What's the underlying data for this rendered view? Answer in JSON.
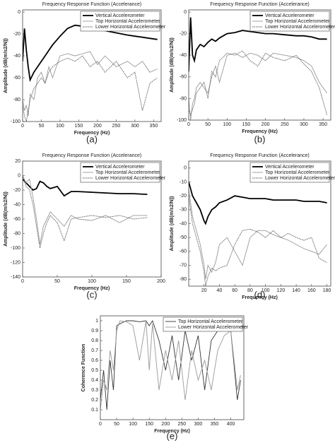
{
  "chart_data": [
    {
      "type": "line",
      "title": "Frequency Response Function (Accelerance)",
      "xlabel": "Frequency (Hz)",
      "ylabel": "Amplitude (dB(m/s2/N))",
      "caption": "(a)",
      "x": [
        0,
        5,
        10,
        15,
        20,
        30,
        40,
        50,
        60,
        70,
        80,
        100,
        120,
        140,
        160,
        180,
        200,
        220,
        250,
        280,
        300,
        320,
        340,
        360
      ],
      "series": [
        {
          "name": "Vertical Accelerometer",
          "color": "#000000",
          "style": "solid",
          "values": [
            -45,
            -15,
            -35,
            -50,
            -62,
            -55,
            -50,
            -45,
            -40,
            -35,
            -30,
            -22,
            -15,
            -12,
            -13,
            -14,
            -16,
            -17,
            -19,
            -21,
            -22,
            -23,
            -24,
            -25
          ]
        },
        {
          "name": "Top Horizontal Accelerometer",
          "color": "#999999",
          "style": "solid",
          "values": [
            -80,
            -90,
            -85,
            -95,
            -75,
            -80,
            -60,
            -55,
            -65,
            -50,
            -60,
            -40,
            -38,
            -40,
            -38,
            -36,
            -48,
            -40,
            -50,
            -45,
            -50,
            -45,
            -55,
            -52
          ]
        },
        {
          "name": "Lower Horizontal Accelerometer",
          "color": "#555555",
          "style": "dotted",
          "values": [
            -85,
            -95,
            -100,
            -90,
            -80,
            -70,
            -65,
            -60,
            -65,
            -55,
            -50,
            -45,
            -42,
            -45,
            -40,
            -50,
            -45,
            -55,
            -45,
            -60,
            -55,
            -90,
            -65,
            -60
          ]
        }
      ],
      "xlim": [
        0,
        370
      ],
      "xticks": [
        0,
        50,
        100,
        150,
        200,
        250,
        300,
        350
      ],
      "ylim": [
        -100,
        2
      ],
      "yticks": [
        -100,
        -80,
        -60,
        -40,
        -20,
        0
      ]
    },
    {
      "type": "line",
      "title": "Frequency Response Function (Accelerance)",
      "xlabel": "Frequency (Hz)",
      "ylabel": "Amplitude (dB(m/s2/N))",
      "caption": "(b)",
      "x": [
        0,
        5,
        10,
        15,
        20,
        30,
        40,
        50,
        60,
        70,
        80,
        100,
        120,
        140,
        160,
        180,
        200,
        220,
        250,
        280,
        300,
        320,
        340,
        360
      ],
      "series": [
        {
          "name": "Vertical Accelerometer",
          "color": "#000000",
          "style": "solid",
          "values": [
            -55,
            -5,
            -40,
            -45,
            -35,
            -30,
            -32,
            -28,
            -25,
            -27,
            -24,
            -20,
            -19,
            -17,
            -18,
            -19,
            -20,
            -20,
            -21,
            -22,
            -22,
            -23,
            -25,
            -25
          ]
        },
        {
          "name": "Top Horizontal Accelerometer",
          "color": "#999999",
          "style": "solid",
          "values": [
            -80,
            -100,
            -85,
            -80,
            -70,
            -65,
            -70,
            -75,
            -60,
            -50,
            -65,
            -40,
            -38,
            -42,
            -38,
            -40,
            -45,
            -38,
            -40,
            -42,
            -45,
            -50,
            -65,
            -75
          ]
        },
        {
          "name": "Lower Horizontal Accelerometer",
          "color": "#555555",
          "style": "dotted",
          "values": [
            -90,
            -95,
            -90,
            -85,
            -75,
            -70,
            -65,
            -80,
            -55,
            -60,
            -45,
            -38,
            -40,
            -36,
            -45,
            -50,
            -38,
            -42,
            -45,
            -40,
            -48,
            -55,
            -70,
            -95
          ]
        }
      ],
      "xlim": [
        0,
        370
      ],
      "xticks": [
        0,
        50,
        100,
        150,
        200,
        250,
        300,
        350
      ],
      "ylim": [
        -100,
        2
      ],
      "yticks": [
        -100,
        -80,
        -60,
        -40,
        -20,
        0
      ]
    },
    {
      "type": "line",
      "title": "Frequency Response Function (Accelerance)",
      "xlabel": "Frequency (Hz)",
      "ylabel": "Amplitude (dB(m/s2/N))",
      "caption": "(c)",
      "x": [
        0,
        5,
        10,
        15,
        20,
        25,
        30,
        35,
        40,
        50,
        60,
        70,
        80,
        100,
        120,
        140,
        160,
        180
      ],
      "series": [
        {
          "name": "Vertical Accelerometer",
          "color": "#000000",
          "style": "solid",
          "values": [
            -5,
            -10,
            -15,
            -20,
            -18,
            -8,
            -10,
            -15,
            -18,
            -15,
            -28,
            -22,
            -22,
            -23,
            -24,
            -25,
            -25,
            -26
          ]
        },
        {
          "name": "Top Horizontal Accelerometer",
          "color": "#999999",
          "style": "solid",
          "values": [
            0,
            -10,
            -5,
            -30,
            -60,
            -95,
            -70,
            -60,
            -50,
            -60,
            -70,
            -55,
            -60,
            -62,
            -55,
            -65,
            -55,
            -55
          ]
        },
        {
          "name": "Lower Horizontal Accelerometer",
          "color": "#555555",
          "style": "dotted",
          "values": [
            0,
            -15,
            -20,
            -40,
            -70,
            -100,
            -80,
            -65,
            -55,
            -65,
            -90,
            -60,
            -58,
            -55,
            -58,
            -55,
            -60,
            -58
          ]
        }
      ],
      "xlim": [
        0,
        200
      ],
      "xticks": [
        0,
        50,
        100,
        150,
        200
      ],
      "ylim": [
        -140,
        20
      ],
      "yticks": [
        -140,
        -120,
        -100,
        -80,
        -60,
        -40,
        -20,
        0,
        20
      ]
    },
    {
      "type": "line",
      "title": "Frequency Response Function (Accelerance)",
      "xlabel": "Frequency (Hz)",
      "ylabel": "Amplitude (dB(m/s2/N))",
      "caption": "(d)",
      "x": [
        0,
        5,
        10,
        15,
        20,
        22,
        25,
        30,
        35,
        40,
        50,
        60,
        70,
        80,
        90,
        100,
        110,
        120,
        130,
        140,
        150,
        160,
        170,
        180
      ],
      "series": [
        {
          "name": "Vertical Accelerometer",
          "color": "#000000",
          "style": "solid",
          "values": [
            -10,
            -20,
            -25,
            -30,
            -38,
            -40,
            -35,
            -30,
            -28,
            -25,
            -23,
            -20,
            -21,
            -22,
            -22,
            -22,
            -23,
            -23,
            -23,
            -23,
            -24,
            -24,
            -24,
            -25
          ]
        },
        {
          "name": "Top Horizontal Accelerometer",
          "color": "#999999",
          "style": "solid",
          "values": [
            -15,
            -35,
            -45,
            -55,
            -70,
            -80,
            -70,
            -75,
            -68,
            -55,
            -50,
            -60,
            -70,
            -50,
            -45,
            -45,
            -48,
            -50,
            -52,
            -55,
            -58,
            -60,
            -62,
            -55
          ]
        },
        {
          "name": "Lower Horizontal Accelerometer",
          "color": "#555555",
          "style": "dotted",
          "values": [
            -20,
            -40,
            -50,
            -60,
            -75,
            -85,
            -78,
            -72,
            -74,
            -72,
            -70,
            -55,
            -45,
            -44,
            -46,
            -50,
            -45,
            -50,
            -47,
            -50,
            -52,
            -50,
            -65,
            -68
          ]
        }
      ],
      "xlim": [
        0,
        185
      ],
      "xticks": [
        20,
        40,
        60,
        80,
        100,
        120,
        140,
        160,
        180
      ],
      "ylim": [
        -85,
        5
      ],
      "yticks": [
        -80,
        -70,
        -60,
        -50,
        -40,
        -30,
        -20,
        -10,
        0
      ]
    },
    {
      "type": "line",
      "xlabel": "Frequency (Hz)",
      "ylabel": "Coherence Function",
      "caption": "(e)",
      "x": [
        0,
        10,
        20,
        30,
        40,
        50,
        60,
        80,
        100,
        120,
        140,
        150,
        160,
        180,
        200,
        220,
        240,
        260,
        280,
        300,
        320,
        340,
        360,
        380,
        400,
        420,
        430
      ],
      "series": [
        {
          "name": "Top Horizontal Accelerometer",
          "color": "#333333",
          "style": "solid",
          "values": [
            0.2,
            0.5,
            0.1,
            0.6,
            0.3,
            0.95,
            0.97,
            1.0,
            1.0,
            0.99,
            1.0,
            0.95,
            1.0,
            0.8,
            0.5,
            0.85,
            0.4,
            0.9,
            0.6,
            0.85,
            0.3,
            0.8,
            0.9,
            0.95,
            0.9,
            0.2,
            0.4
          ]
        },
        {
          "name": "Lower Horizontal Accelerometer",
          "color": "#999999",
          "style": "solid",
          "values": [
            0.1,
            0.4,
            0.3,
            0.7,
            0.5,
            0.9,
            1.0,
            0.99,
            0.95,
            0.6,
            1.0,
            0.5,
            0.97,
            0.3,
            0.7,
            0.4,
            0.8,
            0.2,
            0.7,
            0.4,
            0.6,
            0.3,
            0.7,
            0.85,
            0.9,
            0.3,
            0.45
          ]
        }
      ],
      "xlim": [
        0,
        440
      ],
      "xticks": [
        0,
        50,
        100,
        150,
        200,
        250,
        300,
        350,
        400
      ],
      "ylim": [
        0,
        1.05
      ],
      "yticks": [
        0.1,
        0.2,
        0.3,
        0.4,
        0.5,
        0.6,
        0.7,
        0.8,
        0.9,
        1
      ]
    }
  ]
}
